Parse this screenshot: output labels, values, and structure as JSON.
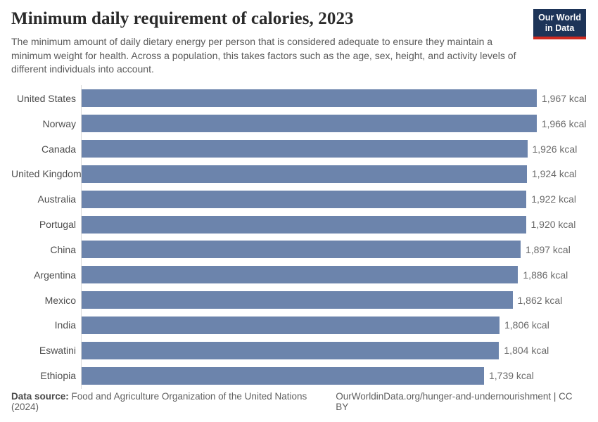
{
  "header": {
    "title": "Minimum daily requirement of calories, 2023",
    "subtitle": "The minimum amount of daily dietary energy per person that is considered adequate to ensure they maintain a minimum weight for health. Across a population, this takes factors such as the age, sex, height, and activity levels of different individuals into account.",
    "logo": {
      "line1": "Our World",
      "line2": "in Data"
    }
  },
  "chart_data": {
    "type": "bar",
    "orientation": "horizontal",
    "title": "Minimum daily requirement of calories, 2023",
    "categories": [
      "United States",
      "Norway",
      "Canada",
      "United Kingdom",
      "Australia",
      "Portugal",
      "China",
      "Argentina",
      "Mexico",
      "India",
      "Eswatini",
      "Ethiopia"
    ],
    "values": [
      1967,
      1966,
      1926,
      1924,
      1922,
      1920,
      1897,
      1886,
      1862,
      1806,
      1804,
      1739
    ],
    "value_labels": [
      "1,967 kcal",
      "1,966 kcal",
      "1,926 kcal",
      "1,924 kcal",
      "1,922 kcal",
      "1,920 kcal",
      "1,897 kcal",
      "1,886 kcal",
      "1,862 kcal",
      "1,806 kcal",
      "1,804 kcal",
      "1,739 kcal"
    ],
    "unit": "kcal",
    "xlim": [
      0,
      1967
    ],
    "grid": false,
    "legend": false,
    "xlabel": "",
    "ylabel": ""
  },
  "colors": {
    "bar": "#6c84ac",
    "logo_bg": "#1d3458",
    "logo_stripe": "#cf2a20",
    "axis_line": "#dadada"
  },
  "footer": {
    "data_source_label": "Data source:",
    "data_source_value": " Food and Agriculture Organization of the United Nations (2024)",
    "attribution": "OurWorldinData.org/hunger-and-undernourishment | CC BY"
  }
}
